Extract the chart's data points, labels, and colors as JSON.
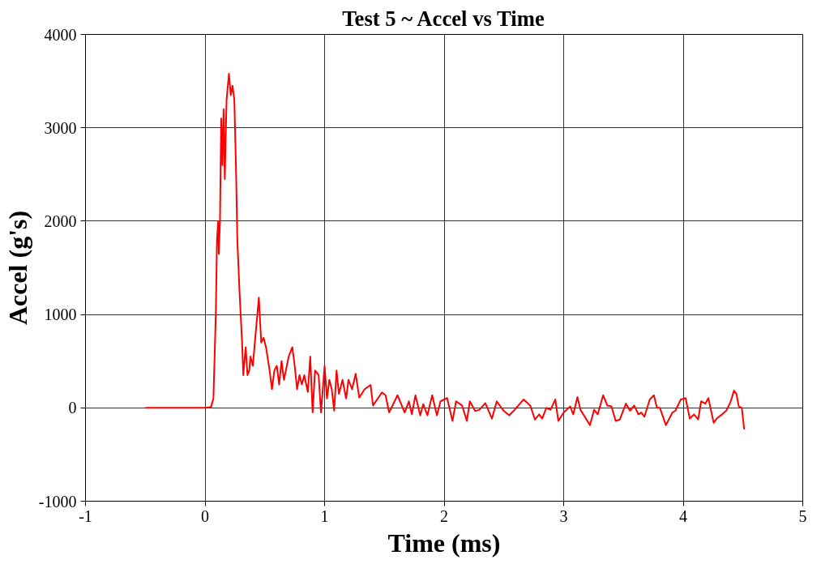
{
  "chart_data": {
    "type": "line",
    "title": "Test 5 ~ Accel vs Time",
    "xlabel": "Time (ms)",
    "ylabel": "Accel (g's)",
    "xlim": [
      -1,
      5
    ],
    "xticks": [
      {
        "value": -1,
        "label": "-1"
      },
      0,
      1,
      2,
      3,
      4,
      5
    ],
    "ylim": [
      -1000,
      4000
    ],
    "yticks": [
      {
        "value": -1000,
        "label": "-1000"
      },
      0,
      1000,
      2000,
      3000,
      4000
    ],
    "grid": true,
    "marker": "none",
    "line_style": "solid",
    "series": [
      {
        "color": "#ff0000",
        "x": [
          -0.5,
          0,
          0.05,
          0.07,
          0.09,
          0.1,
          0.11,
          0.115,
          0.125,
          0.135,
          0.145,
          0.155,
          0.165,
          0.18,
          0.2,
          0.215,
          0.23,
          0.245,
          0.26,
          0.27,
          0.29,
          0.31,
          0.32,
          0.34,
          0.355,
          0.37,
          0.38,
          0.4,
          0.42,
          0.45,
          0.47,
          0.49,
          0.51,
          0.54,
          0.56,
          0.58,
          0.6,
          0.62,
          0.64,
          0.66,
          0.7,
          0.73,
          0.75,
          0.77,
          0.79,
          0.81,
          0.83,
          0.86,
          0.88,
          0.9,
          0.92,
          0.95,
          0.97,
          1.0,
          1.02,
          1.04,
          1.06,
          1.08,
          1.1,
          1.12,
          1.15,
          1.18,
          1.2,
          1.23,
          1.26,
          1.29,
          1.335,
          1.385,
          1.405,
          1.48,
          1.51,
          1.54,
          1.61,
          1.67,
          1.705,
          1.73,
          1.76,
          1.8,
          1.825,
          1.86,
          1.9,
          1.94,
          1.97,
          2.025,
          2.07,
          2.1,
          2.15,
          2.19,
          2.215,
          2.26,
          2.295,
          2.345,
          2.4,
          2.44,
          2.5,
          2.545,
          2.59,
          2.665,
          2.72,
          2.76,
          2.795,
          2.82,
          2.855,
          2.89,
          2.93,
          2.955,
          3.0,
          3.055,
          3.08,
          3.115,
          3.14,
          3.22,
          3.255,
          3.285,
          3.33,
          3.365,
          3.4,
          3.435,
          3.47,
          3.52,
          3.555,
          3.59,
          3.625,
          3.65,
          3.675,
          3.72,
          3.755,
          3.78,
          3.805,
          3.855,
          3.91,
          3.935,
          3.98,
          4.02,
          4.055,
          4.09,
          4.125,
          4.15,
          4.185,
          4.21,
          4.255,
          4.28,
          4.325,
          4.36,
          4.395,
          4.425,
          4.445,
          4.465,
          4.49,
          4.51
        ],
        "values": [
          0,
          0,
          10,
          100,
          1000,
          1800,
          2000,
          1650,
          2000,
          3100,
          2600,
          3200,
          2450,
          3300,
          3580,
          3350,
          3450,
          3300,
          2500,
          1800,
          1200,
          700,
          350,
          650,
          350,
          400,
          550,
          450,
          750,
          1180,
          700,
          750,
          650,
          400,
          200,
          400,
          450,
          250,
          500,
          300,
          550,
          650,
          450,
          200,
          350,
          250,
          350,
          170,
          550,
          -50,
          400,
          350,
          -50,
          450,
          100,
          300,
          200,
          -30,
          400,
          150,
          300,
          100,
          300,
          200,
          365,
          110,
          200,
          245,
          25,
          165,
          135,
          -50,
          135,
          -50,
          70,
          -70,
          135,
          -80,
          40,
          -80,
          135,
          -80,
          70,
          105,
          -140,
          70,
          25,
          -140,
          70,
          -35,
          -20,
          50,
          -115,
          70,
          -35,
          -80,
          -20,
          90,
          25,
          -125,
          -70,
          -115,
          0,
          -20,
          90,
          -140,
          -50,
          15,
          -70,
          115,
          -20,
          -185,
          -20,
          -70,
          135,
          25,
          15,
          -140,
          -125,
          45,
          -30,
          25,
          -70,
          -50,
          -95,
          90,
          135,
          0,
          0,
          -185,
          -50,
          -30,
          90,
          105,
          -115,
          -70,
          -125,
          70,
          45,
          105,
          -160,
          -115,
          -70,
          -30,
          60,
          185,
          150,
          15,
          0,
          -230
        ]
      }
    ]
  }
}
